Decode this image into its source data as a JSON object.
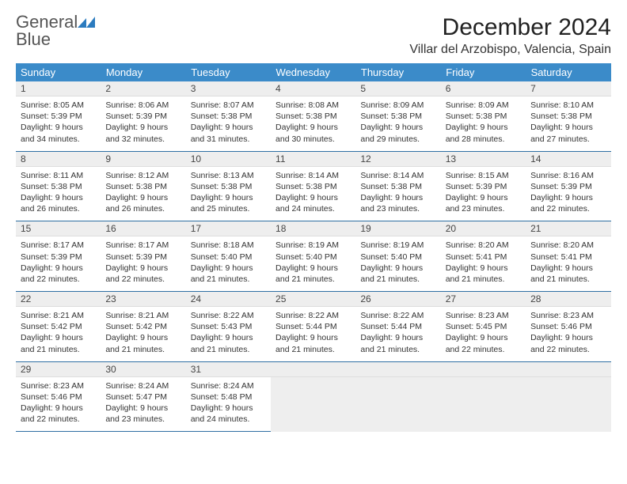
{
  "logo": {
    "textPart1": "General",
    "textPart2": "Blue",
    "iconColor": "#2b7bbf"
  },
  "header": {
    "monthTitle": "December 2024",
    "location": "Villar del Arzobispo, Valencia, Spain"
  },
  "style": {
    "headerBg": "#3b8bc9",
    "headerText": "#ffffff",
    "daynumBg": "#eeeeee",
    "borderColor": "#2f6fa3",
    "bodyFontSize": 10.5,
    "titleFontSize": 30,
    "locationFontSize": 16,
    "weekdayFontSize": 13
  },
  "weekdays": [
    "Sunday",
    "Monday",
    "Tuesday",
    "Wednesday",
    "Thursday",
    "Friday",
    "Saturday"
  ],
  "startWeekday": 0,
  "daysInMonth": 31,
  "days": {
    "1": {
      "sunrise": "8:05 AM",
      "sunset": "5:39 PM",
      "daylight": "9 hours and 34 minutes."
    },
    "2": {
      "sunrise": "8:06 AM",
      "sunset": "5:39 PM",
      "daylight": "9 hours and 32 minutes."
    },
    "3": {
      "sunrise": "8:07 AM",
      "sunset": "5:38 PM",
      "daylight": "9 hours and 31 minutes."
    },
    "4": {
      "sunrise": "8:08 AM",
      "sunset": "5:38 PM",
      "daylight": "9 hours and 30 minutes."
    },
    "5": {
      "sunrise": "8:09 AM",
      "sunset": "5:38 PM",
      "daylight": "9 hours and 29 minutes."
    },
    "6": {
      "sunrise": "8:09 AM",
      "sunset": "5:38 PM",
      "daylight": "9 hours and 28 minutes."
    },
    "7": {
      "sunrise": "8:10 AM",
      "sunset": "5:38 PM",
      "daylight": "9 hours and 27 minutes."
    },
    "8": {
      "sunrise": "8:11 AM",
      "sunset": "5:38 PM",
      "daylight": "9 hours and 26 minutes."
    },
    "9": {
      "sunrise": "8:12 AM",
      "sunset": "5:38 PM",
      "daylight": "9 hours and 26 minutes."
    },
    "10": {
      "sunrise": "8:13 AM",
      "sunset": "5:38 PM",
      "daylight": "9 hours and 25 minutes."
    },
    "11": {
      "sunrise": "8:14 AM",
      "sunset": "5:38 PM",
      "daylight": "9 hours and 24 minutes."
    },
    "12": {
      "sunrise": "8:14 AM",
      "sunset": "5:38 PM",
      "daylight": "9 hours and 23 minutes."
    },
    "13": {
      "sunrise": "8:15 AM",
      "sunset": "5:39 PM",
      "daylight": "9 hours and 23 minutes."
    },
    "14": {
      "sunrise": "8:16 AM",
      "sunset": "5:39 PM",
      "daylight": "9 hours and 22 minutes."
    },
    "15": {
      "sunrise": "8:17 AM",
      "sunset": "5:39 PM",
      "daylight": "9 hours and 22 minutes."
    },
    "16": {
      "sunrise": "8:17 AM",
      "sunset": "5:39 PM",
      "daylight": "9 hours and 22 minutes."
    },
    "17": {
      "sunrise": "8:18 AM",
      "sunset": "5:40 PM",
      "daylight": "9 hours and 21 minutes."
    },
    "18": {
      "sunrise": "8:19 AM",
      "sunset": "5:40 PM",
      "daylight": "9 hours and 21 minutes."
    },
    "19": {
      "sunrise": "8:19 AM",
      "sunset": "5:40 PM",
      "daylight": "9 hours and 21 minutes."
    },
    "20": {
      "sunrise": "8:20 AM",
      "sunset": "5:41 PM",
      "daylight": "9 hours and 21 minutes."
    },
    "21": {
      "sunrise": "8:20 AM",
      "sunset": "5:41 PM",
      "daylight": "9 hours and 21 minutes."
    },
    "22": {
      "sunrise": "8:21 AM",
      "sunset": "5:42 PM",
      "daylight": "9 hours and 21 minutes."
    },
    "23": {
      "sunrise": "8:21 AM",
      "sunset": "5:42 PM",
      "daylight": "9 hours and 21 minutes."
    },
    "24": {
      "sunrise": "8:22 AM",
      "sunset": "5:43 PM",
      "daylight": "9 hours and 21 minutes."
    },
    "25": {
      "sunrise": "8:22 AM",
      "sunset": "5:44 PM",
      "daylight": "9 hours and 21 minutes."
    },
    "26": {
      "sunrise": "8:22 AM",
      "sunset": "5:44 PM",
      "daylight": "9 hours and 21 minutes."
    },
    "27": {
      "sunrise": "8:23 AM",
      "sunset": "5:45 PM",
      "daylight": "9 hours and 22 minutes."
    },
    "28": {
      "sunrise": "8:23 AM",
      "sunset": "5:46 PM",
      "daylight": "9 hours and 22 minutes."
    },
    "29": {
      "sunrise": "8:23 AM",
      "sunset": "5:46 PM",
      "daylight": "9 hours and 22 minutes."
    },
    "30": {
      "sunrise": "8:24 AM",
      "sunset": "5:47 PM",
      "daylight": "9 hours and 23 minutes."
    },
    "31": {
      "sunrise": "8:24 AM",
      "sunset": "5:48 PM",
      "daylight": "9 hours and 24 minutes."
    }
  },
  "labels": {
    "sunrise": "Sunrise:",
    "sunset": "Sunset:",
    "daylight": "Daylight:"
  }
}
